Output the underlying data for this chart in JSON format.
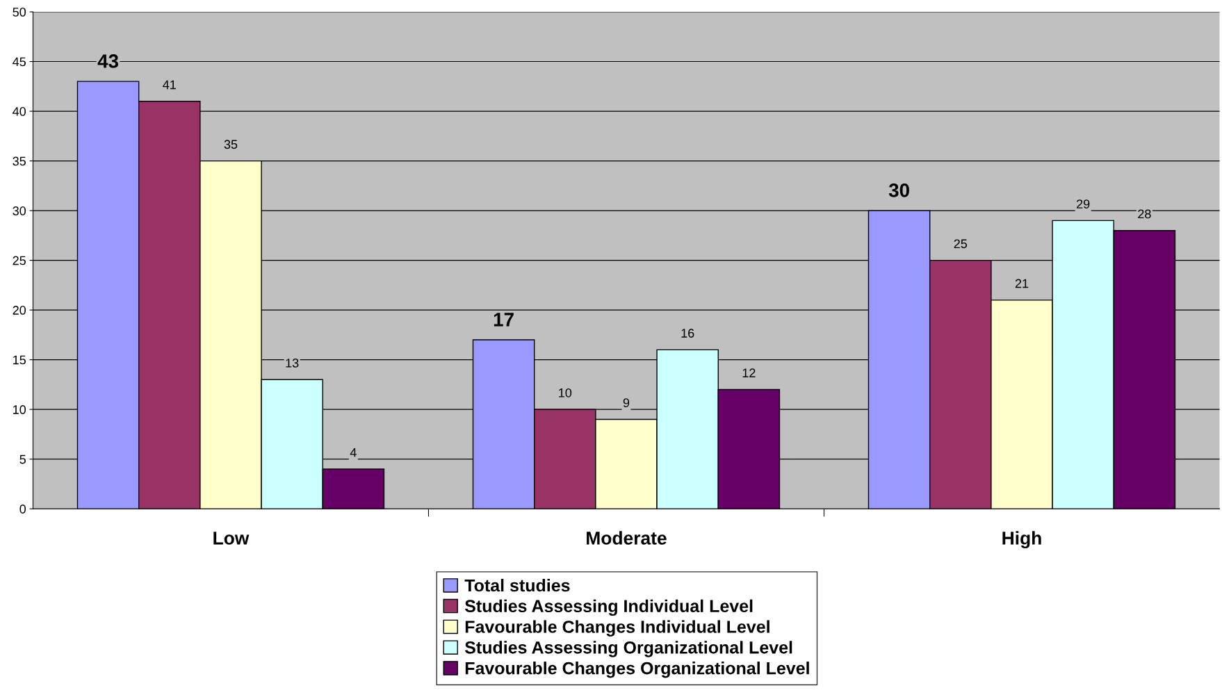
{
  "chart_data": {
    "type": "bar",
    "categories": [
      "Low",
      "Moderate",
      "High"
    ],
    "series": [
      {
        "name": "Total studies",
        "color": "#9999ff",
        "values": [
          43,
          17,
          30
        ]
      },
      {
        "name": "Studies Assessing Individual Level",
        "color": "#993366",
        "values": [
          41,
          10,
          25
        ]
      },
      {
        "name": "Favourable Changes Individual Level",
        "color": "#ffffcc",
        "values": [
          35,
          9,
          21
        ]
      },
      {
        "name": "Studies Assessing Organizational Level",
        "color": "#ccffff",
        "values": [
          13,
          16,
          29
        ]
      },
      {
        "name": "Favourable Changes Organizational Level",
        "color": "#660066",
        "values": [
          4,
          12,
          28
        ]
      }
    ],
    "ylim": [
      0,
      50
    ],
    "yticks": [
      0,
      5,
      10,
      15,
      20,
      25,
      30,
      35,
      40,
      45,
      50
    ],
    "grid": "y",
    "legend": "bottom",
    "data_labels": true
  }
}
